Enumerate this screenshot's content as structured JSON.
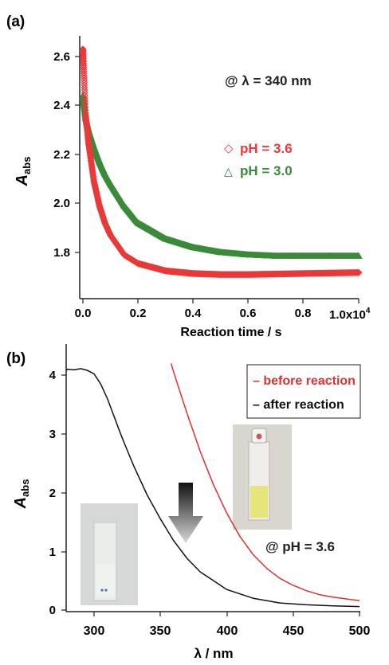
{
  "chart_data": [
    {
      "panel_label": "(a)",
      "type": "scatter",
      "xlabel": "Reaction time  / s",
      "x_scale_label": {
        "base": "1.0x10",
        "exp": "4"
      },
      "ylabel": {
        "main": "A",
        "sub": "abs"
      },
      "xlim": [
        0,
        1.0
      ],
      "ylim": [
        1.72,
        2.68
      ],
      "xticks": [
        "0.0",
        "0.2",
        "0.4",
        "0.6",
        "0.8"
      ],
      "yticks": [
        "1.8",
        "2.0",
        "2.2",
        "2.4",
        "2.6"
      ],
      "annotation": "@ λ = 340 nm",
      "series": [
        {
          "name": "pH = 3.6",
          "marker": "◇",
          "color": "#e83a3a",
          "x": [
            0.0,
            0.01,
            0.02,
            0.04,
            0.06,
            0.08,
            0.1,
            0.15,
            0.2,
            0.3,
            0.4,
            0.5,
            0.6,
            0.7,
            0.8,
            0.9,
            1.0
          ],
          "y": [
            2.63,
            2.36,
            2.25,
            2.09,
            1.99,
            1.92,
            1.87,
            1.79,
            1.755,
            1.725,
            1.714,
            1.71,
            1.71,
            1.712,
            1.714,
            1.716,
            1.718
          ]
        },
        {
          "name": "pH = 3.0",
          "marker": "△",
          "color": "#3a8a3a",
          "x": [
            0.0,
            0.01,
            0.02,
            0.04,
            0.06,
            0.08,
            0.1,
            0.15,
            0.2,
            0.3,
            0.4,
            0.5,
            0.6,
            0.7,
            0.8,
            0.9,
            1.0
          ],
          "y": [
            2.44,
            2.35,
            2.3,
            2.23,
            2.17,
            2.12,
            2.08,
            1.99,
            1.92,
            1.855,
            1.82,
            1.8,
            1.79,
            1.785,
            1.785,
            1.785,
            1.785
          ]
        }
      ]
    },
    {
      "panel_label": "(b)",
      "type": "line",
      "xlabel": "λ / nm",
      "ylabel": {
        "main": "A",
        "sub": "abs"
      },
      "xlim": [
        275,
        500
      ],
      "ylim": [
        0,
        4.2
      ],
      "xticks": [
        "300",
        "350",
        "400",
        "450",
        "500"
      ],
      "yticks": [
        "0",
        "1",
        "2",
        "3",
        "4"
      ],
      "annotation": "@ pH = 3.6",
      "series": [
        {
          "name": "before reaction",
          "legend_text": "– before reaction",
          "color": "#e03030",
          "x": [
            358,
            360,
            365,
            370,
            380,
            390,
            400,
            410,
            420,
            430,
            440,
            450,
            460,
            470,
            480,
            490,
            500
          ],
          "y": [
            4.2,
            4.05,
            3.7,
            3.35,
            2.7,
            2.13,
            1.65,
            1.25,
            0.94,
            0.71,
            0.54,
            0.42,
            0.33,
            0.26,
            0.22,
            0.19,
            0.16
          ]
        },
        {
          "name": "after reaction",
          "legend_text": "– after reaction",
          "color": "#111111",
          "x": [
            275,
            280,
            285,
            290,
            295,
            300,
            305,
            310,
            315,
            320,
            325,
            330,
            340,
            350,
            360,
            370,
            380,
            400,
            420,
            440,
            460,
            480,
            500
          ],
          "y": [
            4.08,
            4.1,
            4.09,
            4.11,
            4.08,
            4.02,
            3.85,
            3.6,
            3.3,
            3.0,
            2.72,
            2.45,
            1.96,
            1.55,
            1.18,
            0.88,
            0.65,
            0.35,
            0.2,
            0.12,
            0.09,
            0.07,
            0.06
          ]
        }
      ]
    }
  ]
}
